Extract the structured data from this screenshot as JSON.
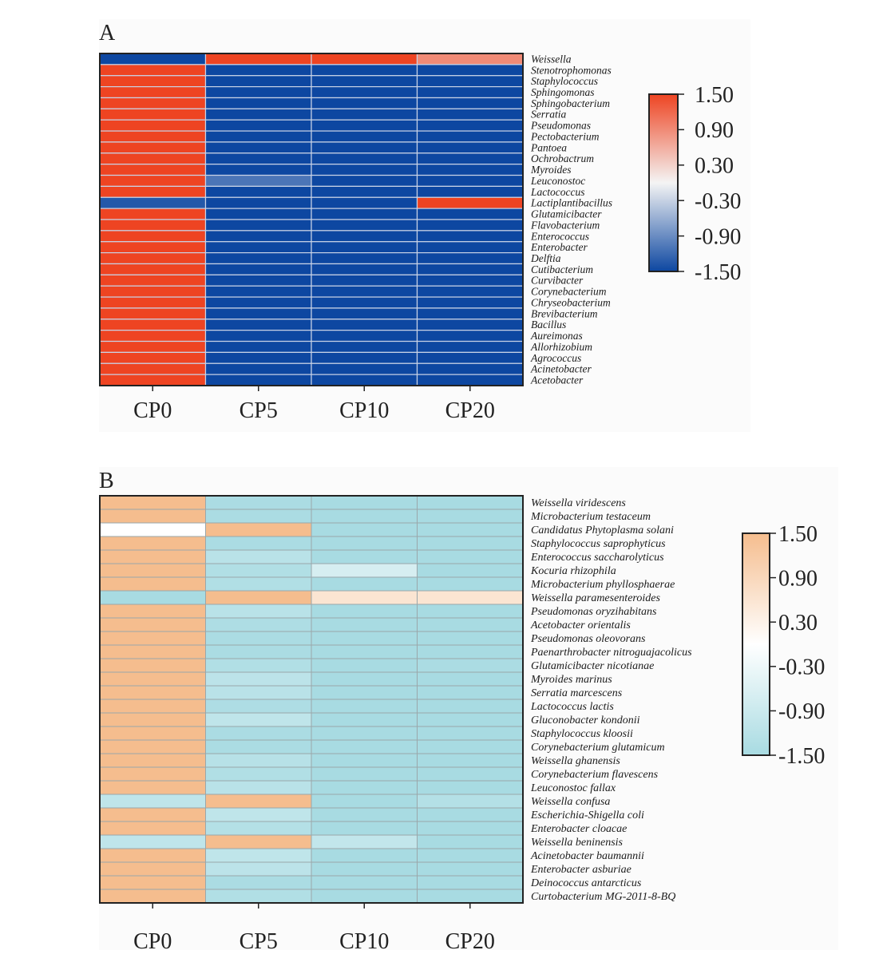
{
  "chart_data": [
    {
      "panel": "A",
      "type": "heatmap",
      "title": "",
      "xlabel": "",
      "ylabel": "",
      "columns": [
        "CP0",
        "CP5",
        "CP10",
        "CP20"
      ],
      "rows": [
        "Weissella",
        "Stenotrophomonas",
        "Staphylococcus",
        "Sphingomonas",
        "Sphingobacterium",
        "Serratia",
        "Pseudomonas",
        "Pectobacterium",
        "Pantoea",
        "Ochrobactrum",
        "Myroides",
        "Leuconostoc",
        "Lactococcus",
        "Lactiplantibacillus",
        "Glutamicibacter",
        "Flavobacterium",
        "Enterococcus",
        "Enterobacter",
        "Delftia",
        "Cutibacterium",
        "Curvibacter",
        "Corynebacterium",
        "Chryseobacterium",
        "Brevibacterium",
        "Bacillus",
        "Aureimonas",
        "Allorhizobium",
        "Agrococcus",
        "Acinetobacter",
        "Acetobacter"
      ],
      "values": [
        [
          -1.5,
          1.5,
          1.5,
          0.9
        ],
        [
          1.5,
          -1.5,
          -1.5,
          -1.5
        ],
        [
          1.5,
          -1.5,
          -1.5,
          -1.5
        ],
        [
          1.5,
          -1.5,
          -1.5,
          -1.5
        ],
        [
          1.5,
          -1.5,
          -1.5,
          -1.5
        ],
        [
          1.5,
          -1.5,
          -1.5,
          -1.5
        ],
        [
          1.5,
          -1.5,
          -1.5,
          -1.5
        ],
        [
          1.5,
          -1.5,
          -1.5,
          -1.5
        ],
        [
          1.5,
          -1.5,
          -1.5,
          -1.5
        ],
        [
          1.5,
          -1.5,
          -1.5,
          -1.5
        ],
        [
          1.5,
          -1.5,
          -1.5,
          -1.5
        ],
        [
          1.5,
          -1.1,
          -1.5,
          -1.5
        ],
        [
          1.5,
          -1.5,
          -1.5,
          -1.5
        ],
        [
          -1.35,
          -1.5,
          -1.5,
          1.5
        ],
        [
          1.5,
          -1.5,
          -1.5,
          -1.5
        ],
        [
          1.5,
          -1.5,
          -1.5,
          -1.5
        ],
        [
          1.5,
          -1.5,
          -1.5,
          -1.5
        ],
        [
          1.5,
          -1.5,
          -1.5,
          -1.5
        ],
        [
          1.5,
          -1.5,
          -1.5,
          -1.5
        ],
        [
          1.5,
          -1.5,
          -1.5,
          -1.5
        ],
        [
          1.5,
          -1.5,
          -1.5,
          -1.5
        ],
        [
          1.5,
          -1.5,
          -1.5,
          -1.5
        ],
        [
          1.5,
          -1.5,
          -1.5,
          -1.5
        ],
        [
          1.5,
          -1.5,
          -1.5,
          -1.5
        ],
        [
          1.5,
          -1.5,
          -1.5,
          -1.5
        ],
        [
          1.5,
          -1.5,
          -1.5,
          -1.5
        ],
        [
          1.5,
          -1.5,
          -1.5,
          -1.5
        ],
        [
          1.5,
          -1.5,
          -1.5,
          -1.5
        ],
        [
          1.5,
          -1.5,
          -1.5,
          -1.5
        ],
        [
          1.5,
          -1.5,
          -1.5,
          -1.5
        ]
      ],
      "colorbar": {
        "range": [
          -1.5,
          1.5
        ],
        "ticks": [
          "1.50",
          "0.90",
          "0.30",
          "-0.30",
          "-0.90",
          "-1.50"
        ],
        "low_color": "#0d47a1",
        "mid_color": "#f4f4f4",
        "high_color": "#ee4422"
      }
    },
    {
      "panel": "B",
      "type": "heatmap",
      "title": "",
      "xlabel": "",
      "ylabel": "",
      "columns": [
        "CP0",
        "CP5",
        "CP10",
        "CP20"
      ],
      "rows": [
        "Weissella viridescens",
        "Microbacterium testaceum",
        "Candidatus Phytoplasma solani",
        "Staphylococcus saprophyticus",
        "Enterococcus saccharolyticus",
        "Kocuria rhizophila",
        "Microbacterium phyllosphaerae",
        "Weissella paramesenteroides",
        "Pseudomonas oryzihabitans",
        "Acetobacter orientalis",
        "Pseudomonas oleovorans",
        "Paenarthrobacter nitroguajacolicus",
        "Glutamicibacter nicotianae",
        "Myroides marinus",
        "Serratia marcescens",
        "Lactococcus lactis",
        "Gluconobacter kondonii",
        "Staphylococcus kloosii",
        "Corynebacterium glutamicum",
        "Weissella ghanensis",
        "Corynebacterium flavescens",
        "Leuconostoc fallax",
        "Weissella confusa",
        "Escherichia-Shigella coli",
        "Enterobacter cloacae",
        "Weissella beninensis",
        "Acinetobacter baumannii",
        "Enterobacter asburiae",
        "Deinococcus antarcticus",
        "Curtobacterium MG-2011-8-BQ"
      ],
      "values": [
        [
          1.5,
          -1.45,
          -1.5,
          -1.5
        ],
        [
          1.5,
          -1.45,
          -1.5,
          -1.5
        ],
        [
          0.0,
          1.5,
          -1.5,
          -1.5
        ],
        [
          1.5,
          -1.45,
          -1.5,
          -1.5
        ],
        [
          1.5,
          -1.2,
          -1.5,
          -1.5
        ],
        [
          1.5,
          -1.35,
          -0.7,
          -1.5
        ],
        [
          1.5,
          -1.35,
          -1.5,
          -1.5
        ],
        [
          -1.5,
          1.5,
          0.6,
          0.6
        ],
        [
          1.5,
          -1.2,
          -1.5,
          -1.5
        ],
        [
          1.5,
          -1.4,
          -1.5,
          -1.5
        ],
        [
          1.5,
          -1.45,
          -1.5,
          -1.5
        ],
        [
          1.5,
          -1.45,
          -1.5,
          -1.5
        ],
        [
          1.5,
          -1.35,
          -1.5,
          -1.45
        ],
        [
          1.5,
          -1.15,
          -1.5,
          -1.5
        ],
        [
          1.5,
          -1.2,
          -1.5,
          -1.5
        ],
        [
          1.5,
          -1.4,
          -1.5,
          -1.5
        ],
        [
          1.5,
          -1.1,
          -1.5,
          -1.5
        ],
        [
          1.5,
          -1.45,
          -1.5,
          -1.5
        ],
        [
          1.5,
          -1.45,
          -1.5,
          -1.5
        ],
        [
          1.5,
          -1.25,
          -1.5,
          -1.5
        ],
        [
          1.5,
          -1.35,
          -1.5,
          -1.5
        ],
        [
          1.5,
          -1.2,
          -1.5,
          -1.5
        ],
        [
          -1.1,
          1.5,
          -1.5,
          -1.3
        ],
        [
          1.5,
          -1.1,
          -1.5,
          -1.5
        ],
        [
          1.5,
          -1.3,
          -1.5,
          -1.5
        ],
        [
          -1.1,
          1.5,
          -1.05,
          -1.5
        ],
        [
          1.5,
          -1.1,
          -1.5,
          -1.5
        ],
        [
          1.5,
          -1.15,
          -1.5,
          -1.5
        ],
        [
          1.5,
          -1.45,
          -1.5,
          -1.5
        ],
        [
          1.5,
          -1.35,
          -1.5,
          -1.5
        ]
      ],
      "colorbar": {
        "range": [
          -1.5,
          1.5
        ],
        "ticks": [
          "1.50",
          "0.90",
          "0.30",
          "-0.30",
          "-0.90",
          "-1.50"
        ],
        "low_color": "#a8dbe2",
        "mid_color": "#ffffff",
        "high_color": "#f5bd8e"
      }
    }
  ],
  "panels": {
    "A": {
      "letter": "A"
    },
    "B": {
      "letter": "B"
    }
  }
}
